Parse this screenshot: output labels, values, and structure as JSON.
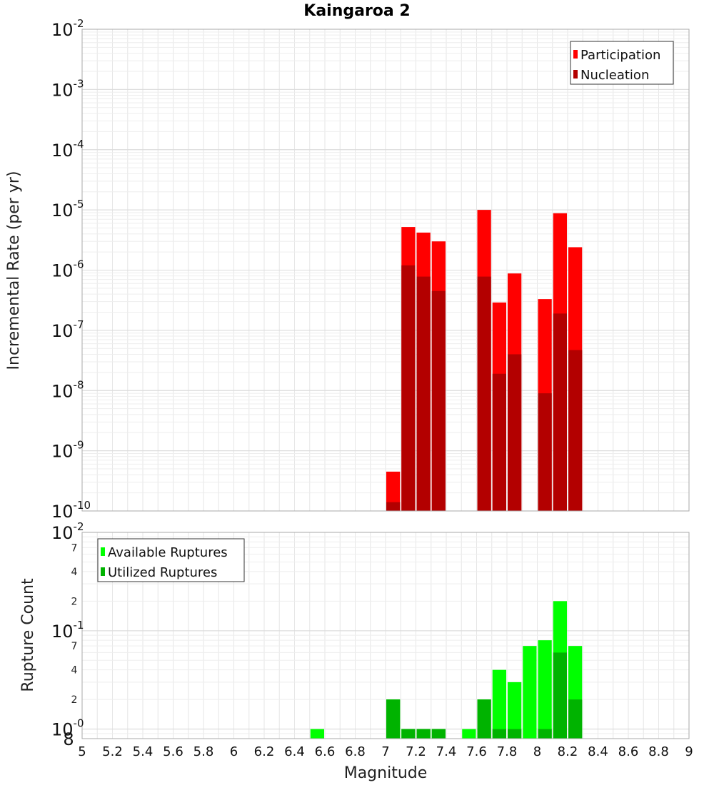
{
  "chart_data": [
    {
      "type": "bar",
      "title": "Kaingaroa 2",
      "ylabel": "Incremental Rate (per yr)",
      "yscale": "log",
      "ylim": [
        1e-10,
        0.01
      ],
      "xlim": [
        5,
        9
      ],
      "bin_width": 0.1,
      "grid": true,
      "legend_position": "top-right",
      "y_tick_labels": [
        "10-10",
        "10-9",
        "10-8",
        "10-7",
        "10-6",
        "10-5",
        "10-4",
        "10-3",
        "10-2"
      ],
      "series": [
        {
          "name": "Participation",
          "color": "#ff0000",
          "x": [
            7.05,
            7.15,
            7.25,
            7.35,
            7.65,
            7.75,
            7.85,
            8.05,
            8.15,
            8.25
          ],
          "values": [
            4.5e-10,
            5.2e-06,
            4.2e-06,
            3e-06,
            1e-05,
            2.9e-07,
            8.8e-07,
            3.3e-07,
            8.8e-06,
            2.4e-06
          ]
        },
        {
          "name": "Nucleation",
          "color": "#b30000",
          "x": [
            7.05,
            7.15,
            7.25,
            7.35,
            7.65,
            7.75,
            7.85,
            8.05,
            8.15,
            8.25
          ],
          "values": [
            1.4e-10,
            1.2e-06,
            7.8e-07,
            4.5e-07,
            7.8e-07,
            1.9e-08,
            4e-08,
            9e-09,
            1.9e-07,
            4.7e-08
          ]
        }
      ]
    },
    {
      "type": "bar",
      "xlabel": "Magnitude",
      "ylabel": "Rupture Count",
      "yscale": "log",
      "ylim": [
        0.8,
        100
      ],
      "xlim": [
        5,
        9
      ],
      "bin_width": 0.1,
      "grid": true,
      "legend_position": "top-left",
      "x_ticks": [
        "5",
        "5.2",
        "5.4",
        "5.6",
        "5.8",
        "6",
        "6.2",
        "6.4",
        "6.6",
        "6.8",
        "7",
        "7.2",
        "7.4",
        "7.6",
        "7.8",
        "8",
        "8.2",
        "8.4",
        "8.6",
        "8.8",
        "9"
      ],
      "y_tick_labels": [
        "10-0",
        "10-1",
        "10-2"
      ],
      "y_minor_labels": [
        "8",
        "2",
        "4",
        "7",
        "2",
        "4",
        "7"
      ],
      "series": [
        {
          "name": "Available Ruptures",
          "color": "#00ff00",
          "x": [
            6.55,
            7.05,
            7.15,
            7.25,
            7.35,
            7.55,
            7.65,
            7.75,
            7.85,
            7.95,
            8.05,
            8.15,
            8.25
          ],
          "values": [
            1,
            2,
            1,
            1,
            1,
            1,
            2,
            4,
            3,
            7,
            8,
            20,
            7
          ]
        },
        {
          "name": "Utilized Ruptures",
          "color": "#00b300",
          "x": [
            7.05,
            7.15,
            7.25,
            7.35,
            7.65,
            7.75,
            7.85,
            8.05,
            8.15,
            8.25
          ],
          "values": [
            2,
            1,
            1,
            1,
            2,
            1,
            1,
            1,
            6,
            2
          ]
        }
      ]
    }
  ]
}
